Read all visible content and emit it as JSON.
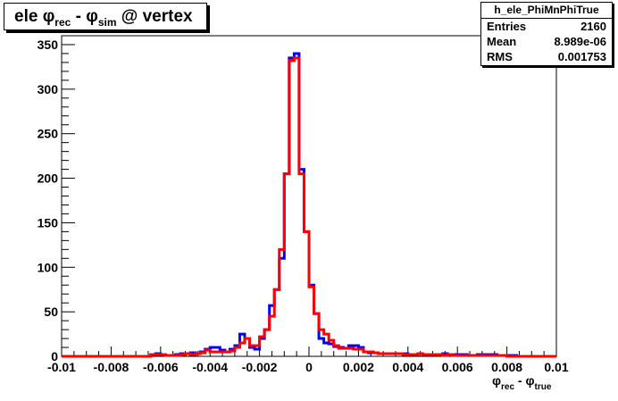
{
  "title": {
    "prefix": "ele ",
    "phi": "φ",
    "rec": "rec",
    "minus": " - ",
    "sim": "sim",
    "suffix": " @ vertex"
  },
  "stats": {
    "name": "h_ele_PhiMnPhiTrue",
    "rows": [
      {
        "key": "Entries",
        "value": "2160"
      },
      {
        "key": "Mean",
        "value": "8.989e-06"
      },
      {
        "key": "RMS",
        "value": "0.001753"
      }
    ]
  },
  "xlabel": {
    "phi": "φ",
    "rec": "rec",
    "minus": " - ",
    "true": "true"
  },
  "colors": {
    "series1": "#0000ff",
    "series2": "#ff0000",
    "axis": "#000000"
  },
  "chart_data": {
    "type": "histogram",
    "xlim": [
      -0.01,
      0.01
    ],
    "ylim": [
      0,
      360
    ],
    "xticks": [
      -0.01,
      -0.008,
      -0.006,
      -0.004,
      -0.002,
      0,
      0.002,
      0.004,
      0.006,
      0.008,
      0.01
    ],
    "xtick_labels": [
      "-0.01",
      "-0.008",
      "-0.006",
      "-0.004",
      "-0.002",
      "0",
      "0.002",
      "0.004",
      "0.006",
      "0.008",
      "0.01"
    ],
    "yticks": [
      0,
      50,
      100,
      150,
      200,
      250,
      300,
      350
    ],
    "ytick_labels": [
      "0",
      "50",
      "100",
      "150",
      "200",
      "250",
      "300",
      "350"
    ],
    "bin_width": 0.0002,
    "bin_start": -0.01,
    "series": [
      {
        "color": "blue",
        "values": [
          0,
          0,
          0,
          0,
          0,
          0,
          0,
          0,
          0,
          0,
          0,
          0,
          0,
          0,
          0,
          0,
          0,
          0,
          2,
          3,
          2,
          1,
          1,
          2,
          3,
          3,
          4,
          3,
          5,
          8,
          10,
          10,
          7,
          5,
          8,
          12,
          25,
          20,
          10,
          8,
          20,
          30,
          57,
          75,
          110,
          205,
          335,
          340,
          210,
          140,
          80,
          48,
          20,
          15,
          14,
          11,
          10,
          9,
          12,
          12,
          10,
          5,
          4,
          4,
          3,
          3,
          3,
          3,
          3,
          3,
          2,
          2,
          3,
          2,
          2,
          2,
          2,
          3,
          2,
          2,
          2,
          2,
          1,
          1,
          2,
          2,
          2,
          2,
          1,
          1,
          1,
          1,
          0,
          0,
          0,
          0,
          0,
          0,
          0,
          0
        ]
      },
      {
        "color": "red",
        "values": [
          0,
          0,
          0,
          0,
          0,
          0,
          0,
          0,
          0,
          0,
          0,
          0,
          0,
          0,
          0,
          0,
          0,
          0,
          2,
          2,
          2,
          1,
          1,
          1,
          2,
          3,
          2,
          3,
          4,
          7,
          5,
          5,
          5,
          5,
          6,
          10,
          15,
          20,
          12,
          12,
          22,
          30,
          45,
          75,
          120,
          205,
          332,
          335,
          205,
          140,
          78,
          48,
          30,
          25,
          18,
          12,
          9,
          9,
          9,
          8,
          8,
          5,
          5,
          4,
          3,
          3,
          3,
          3,
          3,
          2,
          2,
          2,
          3,
          2,
          2,
          2,
          2,
          1,
          2,
          1,
          1,
          1,
          1,
          1,
          1,
          1,
          1,
          1,
          1,
          1,
          0,
          0,
          0,
          0,
          0,
          0,
          0,
          0,
          0,
          0
        ]
      }
    ]
  }
}
